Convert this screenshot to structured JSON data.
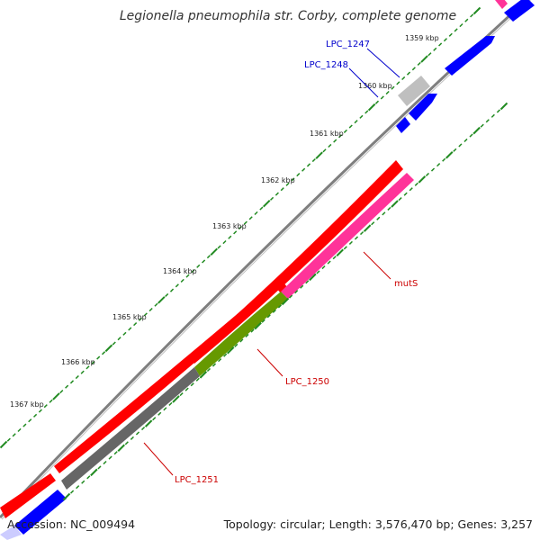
{
  "map": {
    "title": "Legionella pneumophila str. Corby, complete genome",
    "accession": "Accession: NC_009494",
    "topology": "Topology: circular; Length: 3,576,470 bp; Genes: 3,257"
  },
  "ruler": {
    "labels": [
      "1359 kbp",
      "1360 kbp",
      "1361 kbp",
      "1362 kbp",
      "1363 kbp",
      "1364 kbp",
      "1365 kbp",
      "1366 kbp",
      "1367 kbp"
    ]
  },
  "genes": [
    {
      "name": "LPC_1247",
      "color": "#0000cc"
    },
    {
      "name": "LPC_1248",
      "color": "#0000cc"
    },
    {
      "name": "mutS",
      "color": "#cc0000"
    },
    {
      "name": "LPC_1250",
      "color": "#cc0000"
    },
    {
      "name": "LPC_1251",
      "color": "#cc0000"
    }
  ],
  "colors": {
    "backbone": "#808080",
    "reverse_strand_red": "#ff0000",
    "forward_blue": "#0000ff",
    "magenta": "#ff3399",
    "olive": "#669900",
    "dark_gray": "#666666",
    "light_gray": "#bbbbbb",
    "tick_green": "#228b22"
  }
}
